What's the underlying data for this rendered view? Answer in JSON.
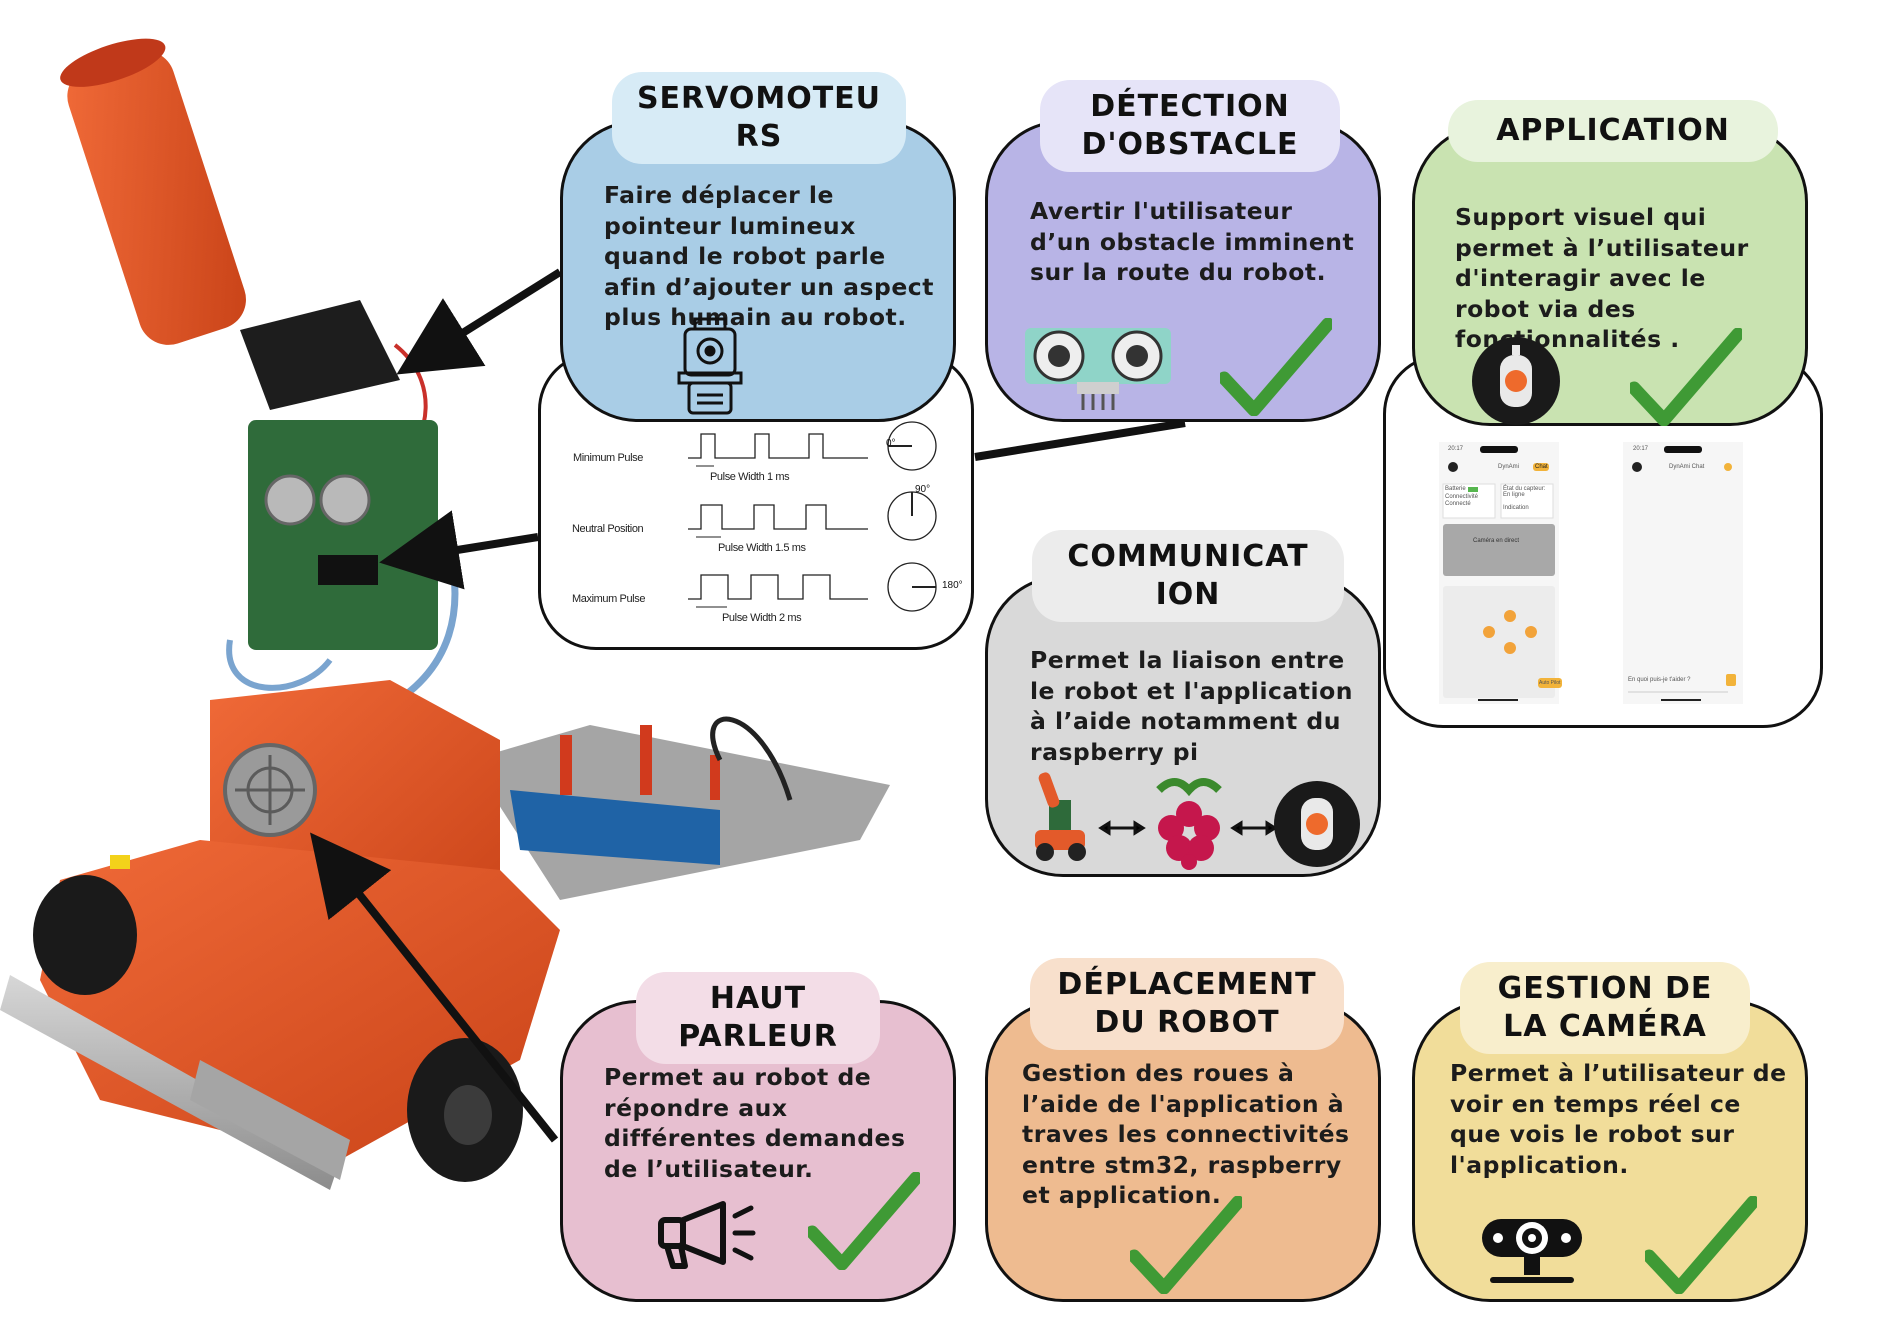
{
  "cards": {
    "servo": {
      "title": "SERVOMOTEU\nRS",
      "text": "Faire déplacer le pointeur lumineux quand le robot parle afin d’ajouter un aspect plus humain au robot.",
      "icon": "servo-motor-icon",
      "color": "#a9cde6",
      "tag_color": "#d7ebf6"
    },
    "obstacle": {
      "title": "DÉTECTION\nD'OBSTACLE",
      "text": "Avertir l'utilisateur d’un obstacle imminent sur la route du robot.",
      "icon": "ultrasonic-sensor-icon",
      "color": "#b8b4e6",
      "tag_color": "#e6e4f8"
    },
    "application": {
      "title": "APPLICATION",
      "text": "Support visuel qui permet à l’utilisateur d'interagir avec le robot via des fonctionnalités .",
      "icon": "app-logo-icon",
      "color": "#c9e3b1",
      "tag_color": "#e8f3dd"
    },
    "communication": {
      "title": "COMMUNICAT\nION",
      "text": "Permet la liaison entre le robot et l'application à l’aide notamment du raspberry pi",
      "icon": "raspberry-pi-icon",
      "color": "#d9d9d9",
      "tag_color": "#ececec"
    },
    "speaker": {
      "title": "HAUT\nPARLEUR",
      "text": "Permet au robot de répondre aux différentes demandes de l’utilisateur.",
      "icon": "megaphone-icon",
      "color": "#e7bfd0",
      "tag_color": "#f3dde7"
    },
    "movement": {
      "title": "DÉPLACEMENT\nDU ROBOT",
      "text": "Gestion des roues à l’aide de l'application à traves les connectivités entre stm32, raspberry et application.",
      "icon": "check-icon",
      "color": "#eebb90",
      "tag_color": "#f8e0cc"
    },
    "camera": {
      "title": "GESTION DE\nLA CAMÉRA",
      "text": "Permet à l’utilisateur de voir en temps réel ce que vois le robot sur l'application.",
      "icon": "webcam-icon",
      "color": "#f1dd9a",
      "tag_color": "#f8eecc"
    }
  },
  "servo_diagram": {
    "rows": [
      {
        "label": "Minimum Pulse",
        "pulse_width": "Pulse Width 1 ms",
        "angle": "0°"
      },
      {
        "label": "Neutral Position",
        "pulse_width": "Pulse Width 1.5 ms",
        "angle": "90°"
      },
      {
        "label": "Maximum Pulse",
        "pulse_width": "Pulse Width 2 ms",
        "angle": "180°"
      }
    ]
  },
  "app_screens": {
    "left": {
      "time": "20:17",
      "title": "DynAmi",
      "badge": "Chat",
      "battery_label": "Batterie",
      "connectivity_label": "Connectivité",
      "connected": "Connecté",
      "sensor_state": "État du capteur: En ligne",
      "indication": "Indication",
      "camera_panel": "Caméra en direct",
      "auto_button": "Auto Pilot"
    },
    "right": {
      "time": "20:17",
      "title": "DynAmi Chat",
      "prompt": "En quoi puis-je t'aider ?"
    }
  },
  "colors": {
    "check_green": "#3f9a35",
    "robot_orange": "#ea5a2a",
    "arrow": "#111111"
  }
}
